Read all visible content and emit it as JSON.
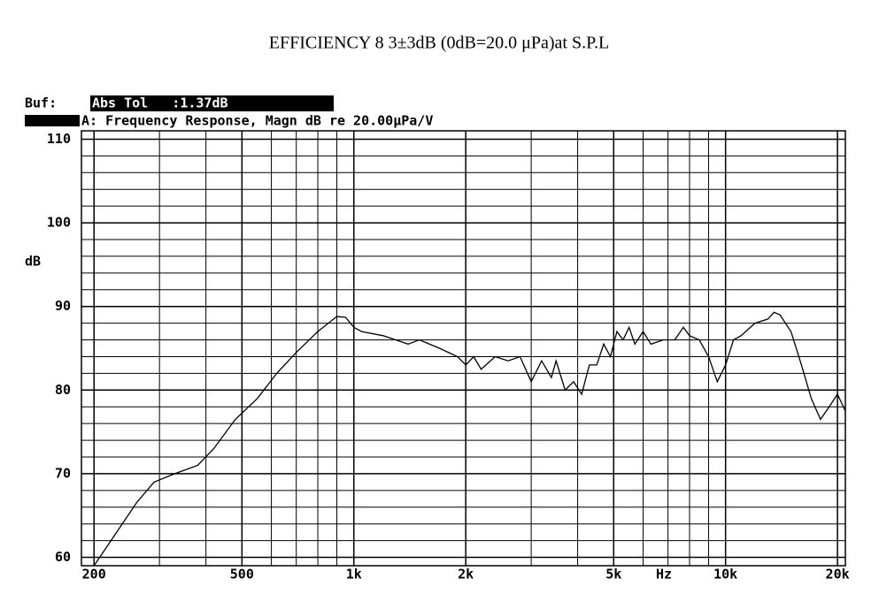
{
  "chart_data": {
    "type": "line",
    "title": "EFFICIENCY 8 3±3dB (0dB=20.0 μPa)at S.P.L",
    "buffer_label": "Buf:",
    "status": "Abs Tol   :1.37dB",
    "subtitle": "A: Frequency Response, Magn dB re 20.00μPa/V",
    "x_label": "Hz",
    "y_label": "dB",
    "x_log": true,
    "grid": true,
    "color": "#000000",
    "xlim": [
      185,
      21000
    ],
    "ylim": [
      59,
      111
    ],
    "xticks": [
      {
        "value": 200,
        "label": "200"
      },
      {
        "value": 500,
        "label": "500"
      },
      {
        "value": 1000,
        "label": "1k"
      },
      {
        "value": 2000,
        "label": "2k"
      },
      {
        "value": 5000,
        "label": "5k"
      },
      {
        "value": 10000,
        "label": "10k"
      },
      {
        "value": 20000,
        "label": "20k"
      }
    ],
    "x_minor_ticks": [
      300,
      400,
      600,
      700,
      800,
      900,
      3000,
      4000,
      6000,
      7000,
      8000,
      9000
    ],
    "yticks": [
      60,
      70,
      80,
      90,
      100,
      110
    ],
    "y_minor_ticks": [
      62,
      64,
      66,
      68,
      72,
      74,
      76,
      78,
      82,
      84,
      86,
      88,
      92,
      94,
      96,
      98,
      102,
      104,
      106,
      108
    ],
    "x": [
      200,
      230,
      260,
      290,
      330,
      380,
      420,
      480,
      550,
      620,
      700,
      800,
      900,
      950,
      1000,
      1050,
      1200,
      1400,
      1500,
      1700,
      1900,
      2000,
      2100,
      2200,
      2400,
      2600,
      2800,
      3000,
      3200,
      3400,
      3500,
      3700,
      3900,
      4100,
      4300,
      4500,
      4700,
      4900,
      5100,
      5300,
      5500,
      5700,
      6000,
      6300,
      6800,
      7300,
      7700,
      8000,
      8500,
      9000,
      9500,
      10000,
      10500,
      11000,
      12000,
      13000,
      13500,
      14000,
      15000,
      16000,
      17000,
      18000,
      19000,
      20000,
      21000
    ],
    "values": [
      59,
      63,
      66.5,
      69,
      70,
      71,
      73,
      76.5,
      79,
      82,
      84.5,
      87,
      88.8,
      88.7,
      87.5,
      87,
      86.5,
      85.5,
      86,
      85,
      84,
      83,
      84,
      82.5,
      84,
      83.5,
      84,
      81,
      83.5,
      81.5,
      83.5,
      80,
      81,
      79.5,
      83,
      83,
      85.5,
      84,
      87,
      86,
      87.5,
      85.5,
      87,
      85.5,
      86,
      86,
      87.5,
      86.5,
      86,
      84,
      81,
      83,
      86,
      86.5,
      88,
      88.5,
      89.3,
      89,
      87,
      83,
      79,
      76.5,
      78,
      79.5,
      77.5
    ]
  }
}
